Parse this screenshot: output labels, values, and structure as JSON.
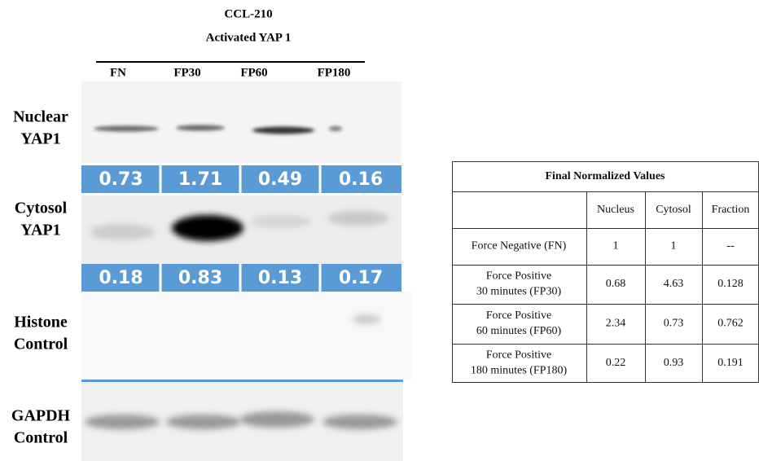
{
  "header": {
    "title": "CCL-210",
    "subtitle": "Activated YAP 1"
  },
  "lanes": [
    "FN",
    "FP30",
    "FP60",
    "FP180"
  ],
  "blots": [
    {
      "label": [
        "Nuclear",
        "YAP1"
      ],
      "quantification": [
        "0.73",
        "1.71",
        "0.49",
        "0.16"
      ]
    },
    {
      "label": [
        "Cytosol",
        "YAP1"
      ],
      "quantification": [
        "0.18",
        "0.83",
        "0.13",
        "0.17"
      ]
    },
    {
      "label": [
        "Histone",
        "Control"
      ]
    },
    {
      "label": [
        "GAPDH",
        "Control"
      ]
    }
  ],
  "table": {
    "title": "Final Normalized Values",
    "columns": [
      "Nucleus",
      "Cytosol",
      "Fraction"
    ],
    "rows": [
      {
        "label": [
          "Force Negative (FN)"
        ],
        "cells": [
          "1",
          "1",
          "--"
        ]
      },
      {
        "label": [
          "Force Positive",
          "30 minutes (FP30)"
        ],
        "cells": [
          "0.68",
          "4.63",
          "0.128"
        ]
      },
      {
        "label": [
          "Force Positive",
          "60 minutes (FP60)"
        ],
        "cells": [
          "2.34",
          "0.73",
          "0.762"
        ]
      },
      {
        "label": [
          "Force Positive",
          "180 minutes (FP180)"
        ],
        "cells": [
          "0.22",
          "0.93",
          "0.191"
        ]
      }
    ]
  }
}
